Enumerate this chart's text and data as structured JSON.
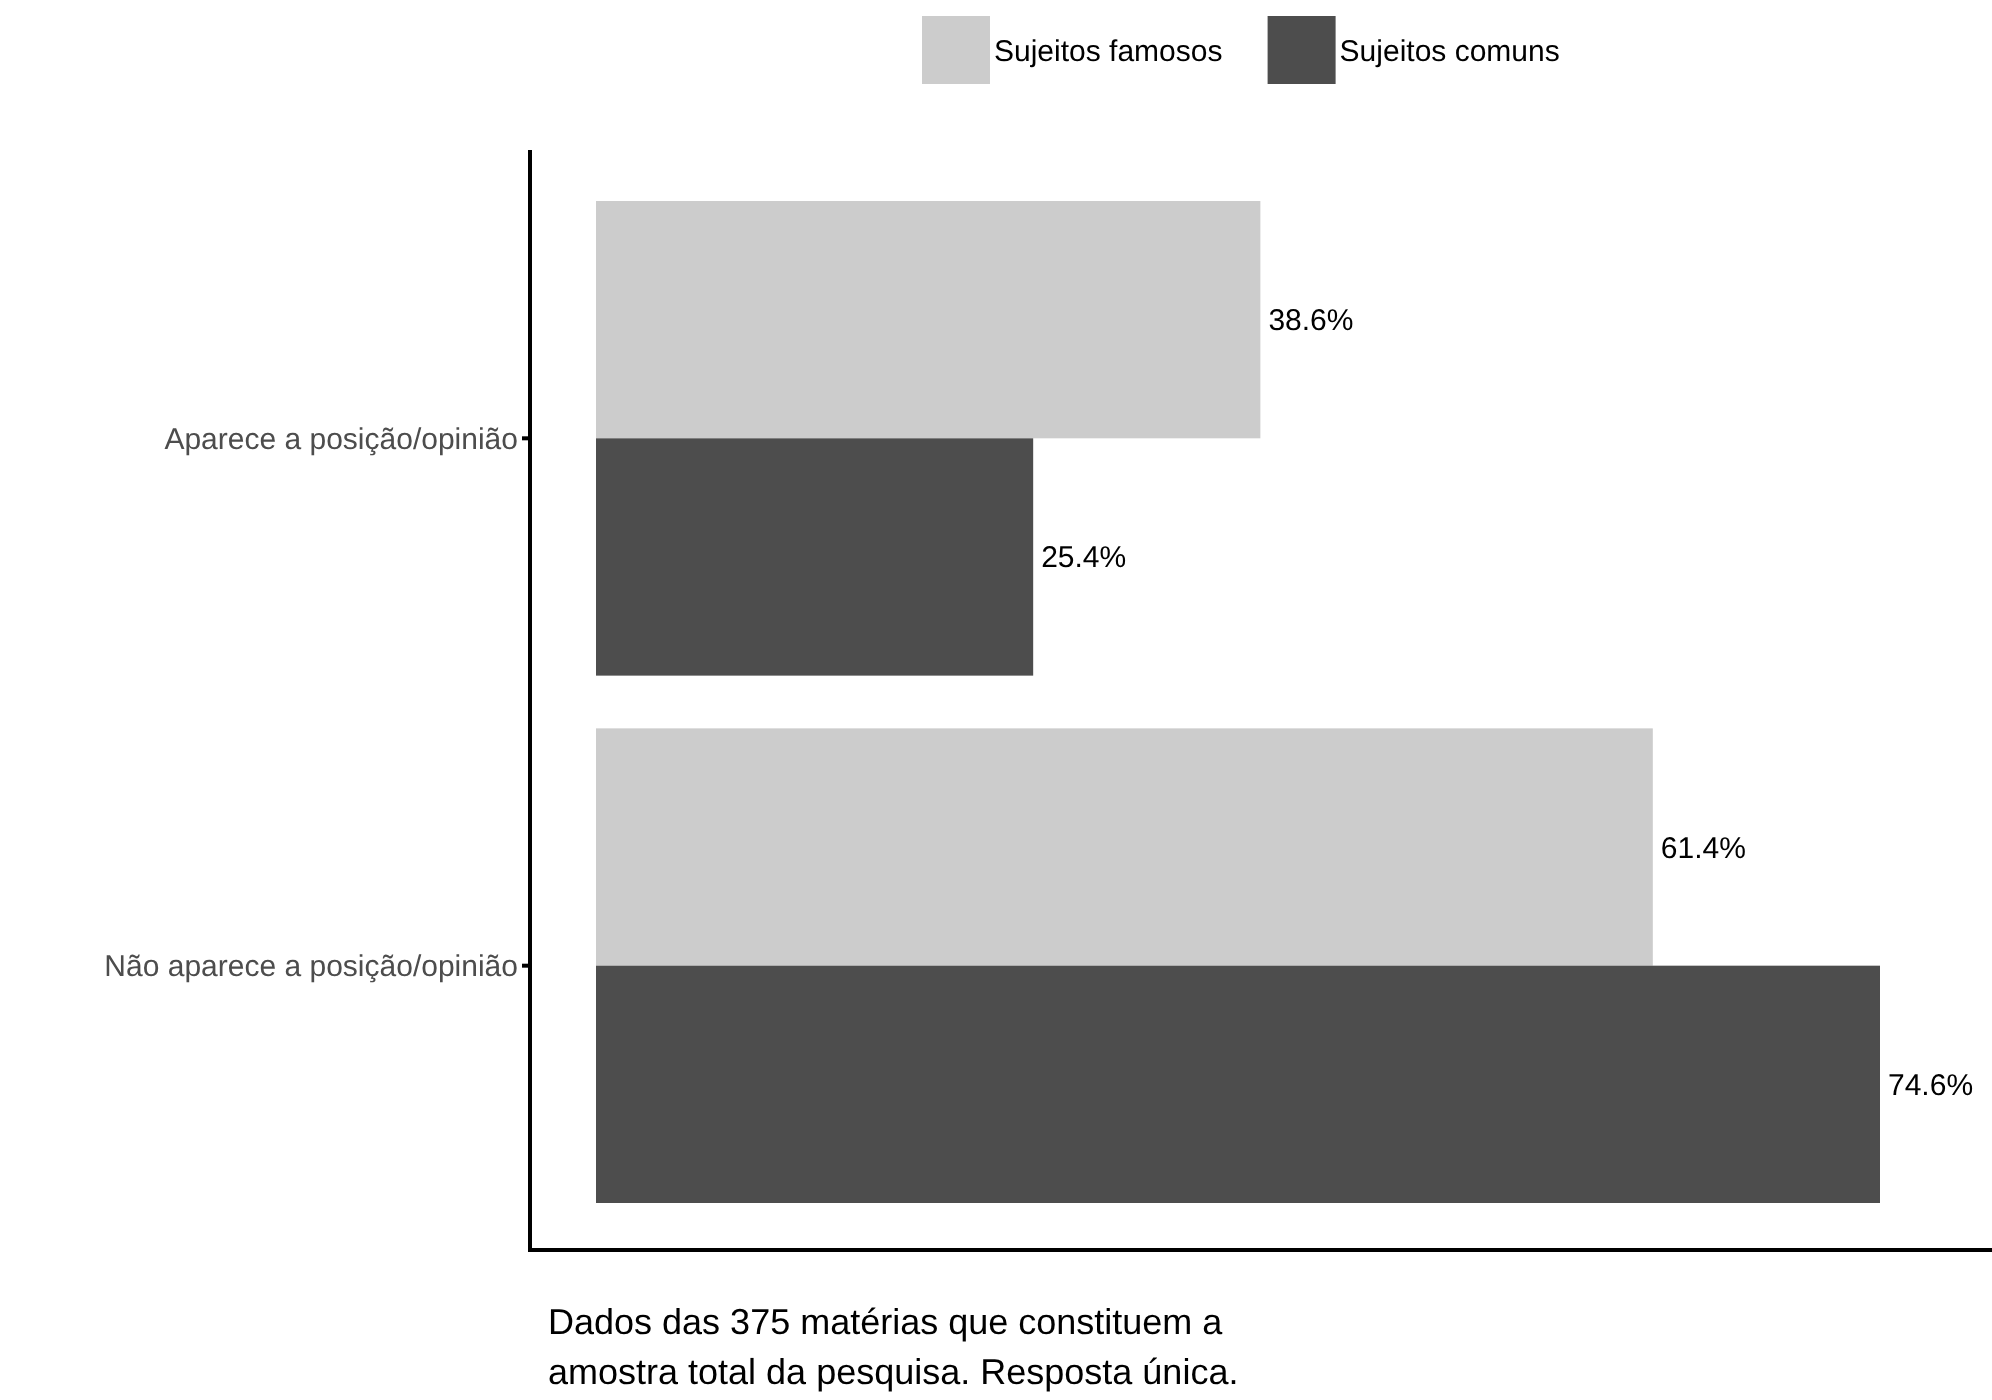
{
  "chart_data": {
    "type": "bar",
    "orientation": "horizontal",
    "categories": [
      "Aparece a posição/opinião",
      "Não aparece a posição/opinião"
    ],
    "series": [
      {
        "name": "Sujeitos famosos",
        "color": "#cccccc",
        "values": [
          38.6,
          61.4
        ],
        "value_labels": [
          "38.6%",
          "61.4%"
        ]
      },
      {
        "name": "Sujeitos comuns",
        "color": "#4d4d4d",
        "values": [
          25.4,
          74.6
        ],
        "value_labels": [
          "25.4%",
          "74.6%"
        ]
      }
    ],
    "legend": "top",
    "annotations": [
      "Dados das 375 matérias que constituem a amostra total da pesquisa. Resposta única."
    ]
  }
}
